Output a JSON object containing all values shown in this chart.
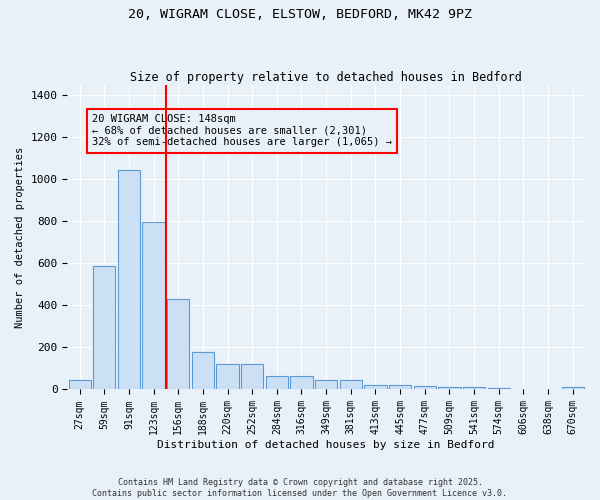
{
  "title1": "20, WIGRAM CLOSE, ELSTOW, BEDFORD, MK42 9PZ",
  "title2": "Size of property relative to detached houses in Bedford",
  "xlabel": "Distribution of detached houses by size in Bedford",
  "ylabel": "Number of detached properties",
  "categories": [
    "27sqm",
    "59sqm",
    "91sqm",
    "123sqm",
    "156sqm",
    "188sqm",
    "220sqm",
    "252sqm",
    "284sqm",
    "316sqm",
    "349sqm",
    "381sqm",
    "413sqm",
    "445sqm",
    "477sqm",
    "509sqm",
    "541sqm",
    "574sqm",
    "606sqm",
    "638sqm",
    "670sqm"
  ],
  "values": [
    45,
    585,
    1045,
    795,
    430,
    180,
    120,
    120,
    65,
    65,
    45,
    45,
    20,
    20,
    15,
    10,
    10,
    5,
    3,
    2,
    10
  ],
  "bar_color": "#cce0f5",
  "bar_edge_color": "#5b9bd5",
  "vline_x": 3.5,
  "vline_color": "red",
  "annotation_box_text": "20 WIGRAM CLOSE: 148sqm\n← 68% of detached houses are smaller (2,301)\n32% of semi-detached houses are larger (1,065) →",
  "background_color": "#e8f0f8",
  "grid_color": "#ffffff",
  "ylim": [
    0,
    1450
  ],
  "footer1": "Contains HM Land Registry data © Crown copyright and database right 2025.",
  "footer2": "Contains public sector information licensed under the Open Government Licence v3.0."
}
